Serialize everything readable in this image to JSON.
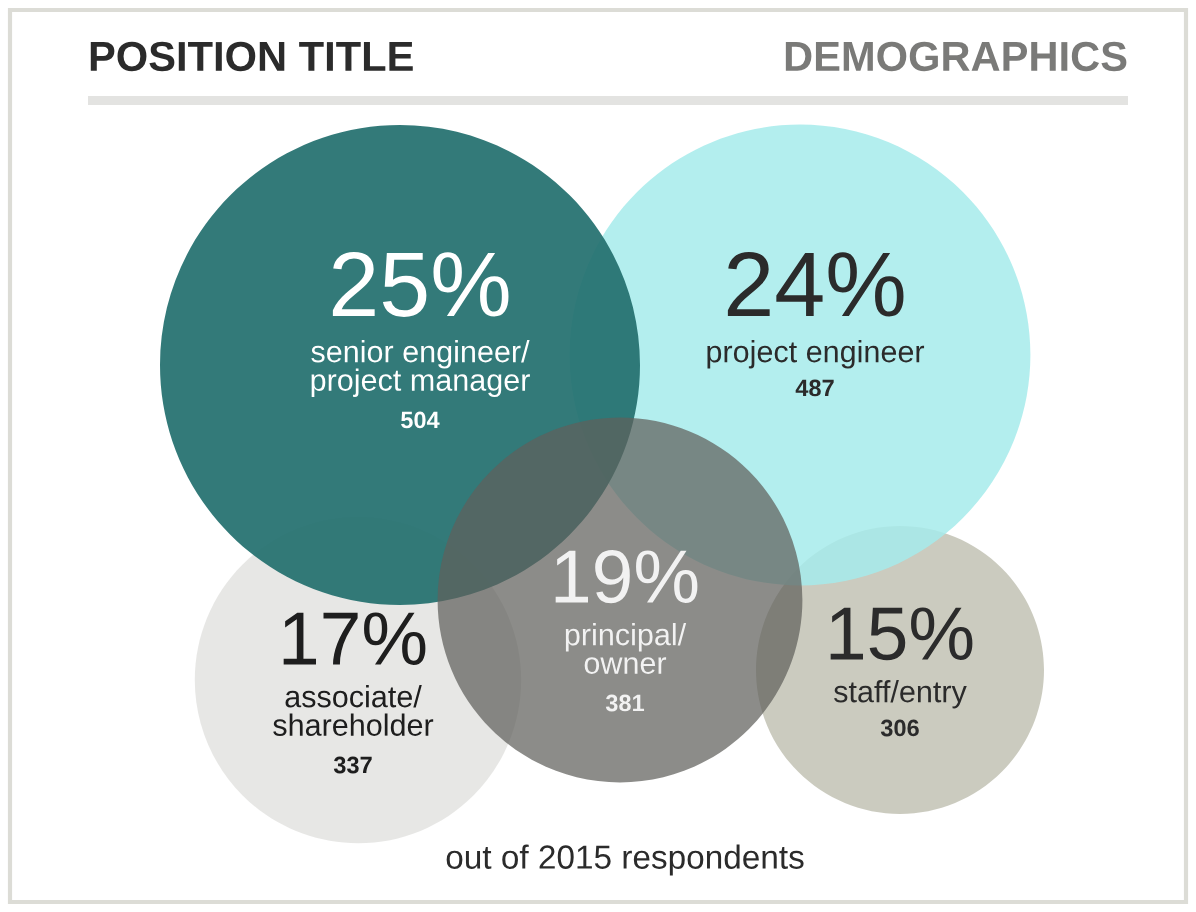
{
  "chart_data": {
    "type": "other",
    "title": "POSITION TITLE",
    "subtitle": "DEMOGRAPHICS",
    "categories": [
      "senior engineer/\nproject manager",
      "project engineer",
      "principal/\nowner",
      "associate/\nshareholder",
      "staff/entry"
    ],
    "series": [
      {
        "values": [
          25,
          24,
          19,
          17,
          15
        ],
        "value_labels": [
          "25%",
          "24%",
          "19%",
          "17%",
          "15%"
        ],
        "colors": [
          "#23706f",
          "#a6ebeb",
          "#5f5f5c",
          "#e4e4e2",
          "#c5c5b8"
        ]
      },
      {
        "values": [
          504,
          487,
          381,
          337,
          306
        ]
      }
    ],
    "data_labels": true,
    "annotations": [
      "out of 2015 respondents"
    ]
  }
}
